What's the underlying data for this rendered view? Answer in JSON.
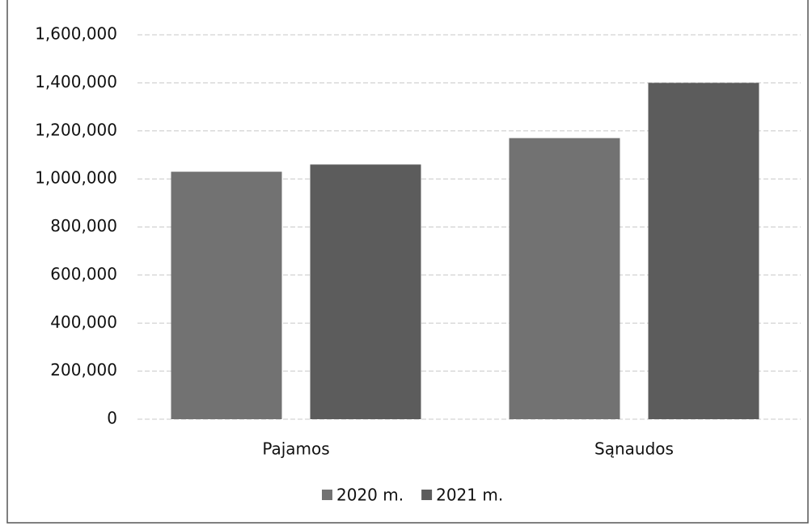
{
  "chart_data": {
    "type": "bar",
    "categories": [
      "Pajamos",
      "Sąnaudos"
    ],
    "series": [
      {
        "name": "2020 m.",
        "color": "#727272",
        "values": [
          1030000,
          1170000
        ]
      },
      {
        "name": "2021 m.",
        "color": "#5c5c5c",
        "values": [
          1060000,
          1400000
        ]
      }
    ],
    "ylim": [
      0,
      1600000
    ],
    "yticks": [
      0,
      {
        "value": 200000,
        "label": "200,000"
      },
      {
        "value": 400000,
        "label": "400,000"
      },
      {
        "value": 600000,
        "label": "600,000"
      },
      {
        "value": 800000,
        "label": "800,000"
      },
      {
        "value": 1000000,
        "label": "1,000,000"
      },
      {
        "value": 1200000,
        "label": "1,200,000"
      },
      {
        "value": 1400000,
        "label": "1,400,000"
      },
      {
        "value": 1600000,
        "label": "1,600,000"
      }
    ],
    "grid": true,
    "legend": "bottom"
  }
}
